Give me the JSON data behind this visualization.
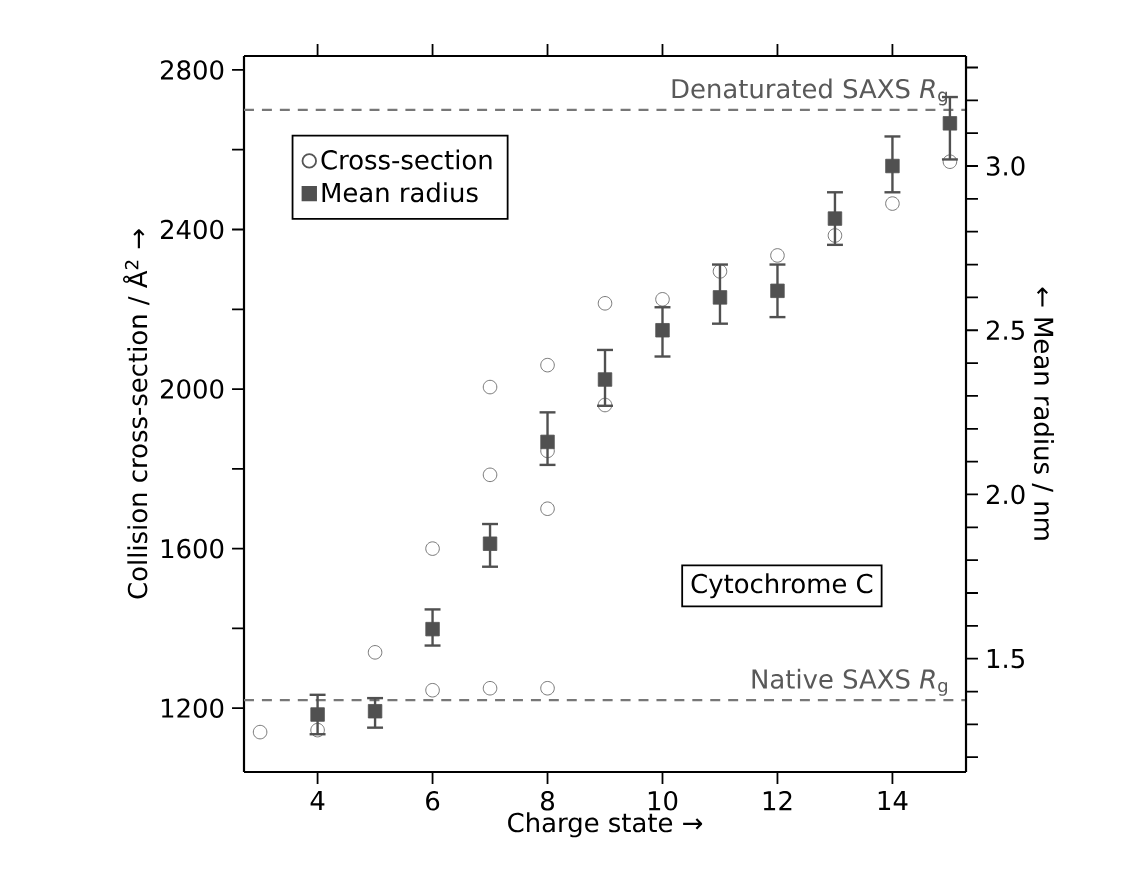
{
  "chart_data": {
    "type": "scatter",
    "xlabel": "Charge state →",
    "ylabel": "Collision cross-section / Å$^{2}$ →",
    "y2label": "← Mean radius / nm",
    "xlim": [
      2.72,
      15.28
    ],
    "ylim": [
      1040,
      2835
    ],
    "y2lim": [
      1.155,
      3.335
    ],
    "xticks": [
      4,
      6,
      8,
      10,
      12,
      14
    ],
    "yticks": [
      1200,
      {
        "value": 1400,
        "label": null
      },
      1600,
      {
        "value": 1800,
        "label": null
      },
      2000,
      {
        "value": 2200,
        "label": null
      },
      2400,
      {
        "value": 2600,
        "label": null
      },
      2800
    ],
    "y2ticks": [
      {
        "value": 1.2,
        "label": null
      },
      {
        "value": 1.3,
        "label": null
      },
      {
        "value": 1.4,
        "label": null
      },
      {
        "value": 1.5,
        "label": "1.5"
      },
      {
        "value": 1.6,
        "label": null
      },
      {
        "value": 1.7,
        "label": null
      },
      {
        "value": 1.8,
        "label": null
      },
      {
        "value": 1.9,
        "label": null
      },
      {
        "value": 2.0,
        "label": "2.0"
      },
      {
        "value": 2.1,
        "label": null
      },
      {
        "value": 2.2,
        "label": null
      },
      {
        "value": 2.3,
        "label": null
      },
      {
        "value": 2.4,
        "label": null
      },
      {
        "value": 2.5,
        "label": "2.5"
      },
      {
        "value": 2.6,
        "label": null
      },
      {
        "value": 2.7,
        "label": null
      },
      {
        "value": 2.8,
        "label": null
      },
      {
        "value": 2.9,
        "label": null
      },
      {
        "value": 3.0,
        "label": "3.0"
      },
      {
        "value": 3.1,
        "label": null
      },
      {
        "value": 3.2,
        "label": null
      },
      {
        "value": 3.3,
        "label": null
      }
    ],
    "legend": "top left",
    "series": [
      {
        "name": "Cross-section",
        "marker": "circle",
        "color": "#555555",
        "x": [
          3,
          4,
          5,
          6,
          6,
          7,
          7,
          7,
          8,
          8,
          8,
          8,
          9,
          9,
          10,
          11,
          12,
          13,
          14,
          15
        ],
        "values": [
          1140,
          1145,
          1340,
          1600,
          1245,
          2005,
          1785,
          1250,
          2060,
          1845,
          1700,
          1250,
          2215,
          1960,
          2225,
          2295,
          2335,
          2385,
          2465,
          2570
        ]
      },
      {
        "name": "Mean radius",
        "marker": "square",
        "color": "#505050",
        "axis": "y2",
        "x": [
          4,
          5,
          6,
          7,
          8,
          9,
          10,
          11,
          12,
          13,
          14,
          15
        ],
        "values": [
          1.33,
          1.34,
          1.59,
          1.85,
          2.16,
          2.35,
          2.5,
          2.6,
          2.62,
          2.84,
          3.0,
          3.13
        ],
        "errors": [
          [
            1.27,
            1.39
          ],
          [
            1.29,
            1.38
          ],
          [
            1.54,
            1.65
          ],
          [
            1.78,
            1.91
          ],
          [
            2.09,
            2.25
          ],
          [
            2.27,
            2.44
          ],
          [
            2.42,
            2.57
          ],
          [
            2.52,
            2.7
          ],
          [
            2.54,
            2.7
          ],
          [
            2.76,
            2.92
          ],
          [
            2.92,
            3.09
          ],
          [
            3.02,
            3.21
          ]
        ]
      }
    ],
    "ref_lines": [
      {
        "axis": "y",
        "value": 2700,
        "label": "Denaturated SAXS *R*$_{g}$",
        "color": "#777777",
        "line_style": "dashed"
      },
      {
        "axis": "y",
        "value": 1220,
        "label": "Native SAXS *R*$_{g}$",
        "color": "#777777",
        "line_style": "dashed"
      }
    ],
    "annotations": [
      "Cytochrome C"
    ]
  }
}
